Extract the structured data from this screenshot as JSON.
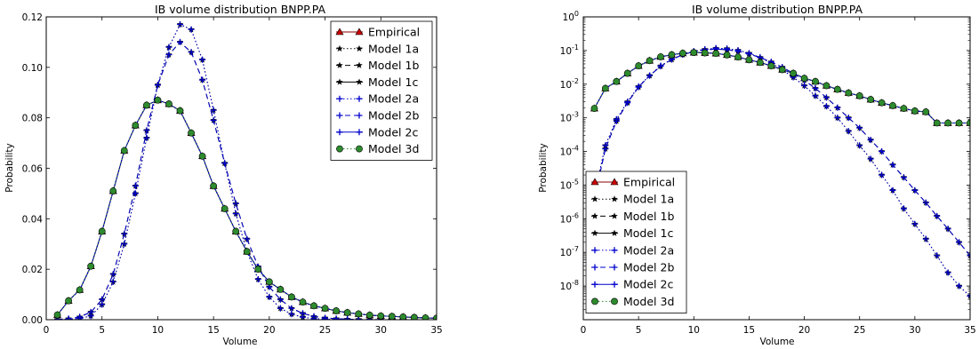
{
  "chart_data": [
    {
      "type": "line",
      "title": "IB volume distribution BNPP.PA",
      "xlabel": "Volume",
      "ylabel": "Probability",
      "xlim": [
        0,
        35
      ],
      "ylim": [
        0,
        0.12
      ],
      "x_ticks": [
        "0",
        "5",
        "10",
        "15",
        "20",
        "25",
        "30",
        "35"
      ],
      "y_ticks": [
        "0.00",
        "0.02",
        "0.04",
        "0.06",
        "0.08",
        "0.10",
        "0.12"
      ],
      "y_scale": "linear",
      "grid": false,
      "legend_position": "top-right",
      "x": [
        1,
        2,
        3,
        4,
        5,
        6,
        7,
        8,
        9,
        10,
        11,
        12,
        13,
        14,
        15,
        16,
        17,
        18,
        19,
        20,
        21,
        22,
        23,
        24,
        25,
        26,
        27,
        28,
        29,
        30,
        31,
        32,
        33,
        34,
        35
      ],
      "series": [
        {
          "name": "Empirical",
          "color": "#8b0000",
          "marker": "triangle",
          "dash": "solid",
          "values": [
            0.0019,
            0.0075,
            0.0118,
            0.0212,
            0.035,
            0.051,
            0.067,
            0.077,
            0.085,
            0.087,
            0.0855,
            0.0828,
            0.074,
            0.0648,
            0.053,
            0.044,
            0.035,
            0.027,
            0.02,
            0.015,
            0.012,
            0.009,
            0.007,
            0.0055,
            0.0045,
            0.0035,
            0.0028,
            0.0023,
            0.0018,
            0.0015,
            0.0013,
            0.0011,
            0.0009,
            0.0007,
            0.0006
          ]
        },
        {
          "name": "Model 1a",
          "color": "#000000",
          "marker": "star",
          "dash": "dotted",
          "values": [
            0.0,
            0.0002,
            0.0005,
            0.0015,
            0.006,
            0.015,
            0.03,
            0.05,
            0.072,
            0.093,
            0.108,
            0.117,
            0.115,
            0.103,
            0.083,
            0.062,
            0.042,
            0.027,
            0.016,
            0.009,
            0.0045,
            0.0022,
            0.001,
            0.0004,
            0.0002,
            0.0001,
            3e-05,
            1e-05,
            0,
            0,
            0,
            0,
            0,
            0,
            0
          ]
        },
        {
          "name": "Model 1b",
          "color": "#000000",
          "marker": "star",
          "dash": "dashed",
          "values": [
            0.0001,
            0.0004,
            0.0011,
            0.003,
            0.008,
            0.018,
            0.034,
            0.053,
            0.075,
            0.093,
            0.105,
            0.11,
            0.106,
            0.095,
            0.079,
            0.062,
            0.046,
            0.032,
            0.021,
            0.013,
            0.008,
            0.0045,
            0.0025,
            0.0013,
            0.0007,
            0.0004,
            0.0002,
            0.0001,
            5e-05,
            2e-05,
            1e-05,
            0,
            0,
            0,
            0
          ]
        },
        {
          "name": "Model 1c",
          "color": "#000000",
          "marker": "star",
          "dash": "solid",
          "values": [
            0.0019,
            0.0075,
            0.0118,
            0.0212,
            0.035,
            0.051,
            0.067,
            0.077,
            0.085,
            0.087,
            0.0855,
            0.0828,
            0.074,
            0.0648,
            0.053,
            0.044,
            0.035,
            0.027,
            0.02,
            0.015,
            0.012,
            0.009,
            0.007,
            0.0055,
            0.0045,
            0.0035,
            0.0028,
            0.0023,
            0.0018,
            0.0015,
            0.0013,
            0.0011,
            0.0009,
            0.0007,
            0.0006
          ]
        },
        {
          "name": "Model 2a",
          "color": "#0000cc",
          "marker": "plus",
          "dash": "dotted",
          "values": [
            0.0,
            0.0002,
            0.0005,
            0.0015,
            0.006,
            0.015,
            0.03,
            0.05,
            0.072,
            0.093,
            0.108,
            0.117,
            0.115,
            0.103,
            0.083,
            0.062,
            0.042,
            0.027,
            0.016,
            0.009,
            0.0045,
            0.0022,
            0.001,
            0.0004,
            0.0002,
            0.0001,
            3e-05,
            1e-05,
            0,
            0,
            0,
            0,
            0,
            0,
            0
          ]
        },
        {
          "name": "Model 2b",
          "color": "#0000cc",
          "marker": "plus",
          "dash": "dashed",
          "values": [
            0.0001,
            0.0004,
            0.0011,
            0.003,
            0.008,
            0.018,
            0.034,
            0.053,
            0.075,
            0.093,
            0.105,
            0.11,
            0.106,
            0.095,
            0.079,
            0.062,
            0.046,
            0.032,
            0.021,
            0.013,
            0.008,
            0.0045,
            0.0025,
            0.0013,
            0.0007,
            0.0004,
            0.0002,
            0.0001,
            5e-05,
            2e-05,
            1e-05,
            0,
            0,
            0,
            0
          ]
        },
        {
          "name": "Model 2c",
          "color": "#0000cc",
          "marker": "plus",
          "dash": "solid",
          "values": [
            0.0019,
            0.0075,
            0.0118,
            0.0212,
            0.035,
            0.051,
            0.067,
            0.077,
            0.085,
            0.087,
            0.0855,
            0.0828,
            0.074,
            0.0648,
            0.053,
            0.044,
            0.035,
            0.027,
            0.02,
            0.015,
            0.012,
            0.009,
            0.007,
            0.0055,
            0.0045,
            0.0035,
            0.0028,
            0.0023,
            0.0018,
            0.0015,
            0.0013,
            0.0011,
            0.0009,
            0.0007,
            0.0006
          ]
        },
        {
          "name": "Model 3d",
          "color": "#2e8b2e",
          "marker": "circle",
          "dash": "dotted",
          "values": [
            0.0019,
            0.0075,
            0.0118,
            0.0212,
            0.035,
            0.051,
            0.067,
            0.077,
            0.085,
            0.087,
            0.0855,
            0.0828,
            0.074,
            0.0648,
            0.053,
            0.044,
            0.035,
            0.027,
            0.02,
            0.015,
            0.012,
            0.009,
            0.007,
            0.0055,
            0.0045,
            0.0035,
            0.0028,
            0.0023,
            0.0018,
            0.0015,
            0.0013,
            0.0011,
            0.0009,
            0.0007,
            0.0006
          ]
        }
      ]
    },
    {
      "type": "line",
      "title": "IB volume distribution BNPP.PA",
      "xlabel": "Volume",
      "ylabel": "Probability",
      "xlim": [
        0,
        35
      ],
      "ylim": [
        1e-09,
        1
      ],
      "x_ticks": [
        "0",
        "5",
        "10",
        "15",
        "20",
        "25",
        "30",
        "35"
      ],
      "y_ticks": [
        {
          "base": "10",
          "exp": "0"
        },
        {
          "base": "10",
          "exp": "-1"
        },
        {
          "base": "10",
          "exp": "-2"
        },
        {
          "base": "10",
          "exp": "-3"
        },
        {
          "base": "10",
          "exp": "-4"
        },
        {
          "base": "10",
          "exp": "-5"
        },
        {
          "base": "10",
          "exp": "-6"
        },
        {
          "base": "10",
          "exp": "-7"
        },
        {
          "base": "10",
          "exp": "-8"
        }
      ],
      "y_scale": "log",
      "grid": false,
      "legend_position": "bottom-left",
      "x": [
        1,
        2,
        3,
        4,
        5,
        6,
        7,
        8,
        9,
        10,
        11,
        12,
        13,
        14,
        15,
        16,
        17,
        18,
        19,
        20,
        21,
        22,
        23,
        24,
        25,
        26,
        27,
        28,
        29,
        30,
        31,
        32,
        33,
        34,
        35
      ],
      "series": [
        {
          "name": "Empirical",
          "color": "#8b0000",
          "marker": "triangle",
          "dash": "solid",
          "values": [
            0.0019,
            0.0075,
            0.012,
            0.021,
            0.035,
            0.05,
            0.065,
            0.075,
            0.083,
            0.087,
            0.085,
            0.082,
            0.074,
            0.064,
            0.053,
            0.044,
            0.035,
            0.027,
            0.021,
            0.015,
            0.012,
            0.009,
            0.007,
            0.0055,
            0.0045,
            0.0035,
            0.0028,
            0.0023,
            0.0019,
            0.0016,
            0.0015,
            0.0007,
            0.0007,
            0.0007,
            0.0007
          ]
        },
        {
          "name": "Model 1a",
          "color": "#000000",
          "marker": "star",
          "dash": "dotted",
          "values": [
            5e-06,
            0.00015,
            0.0009,
            0.003,
            0.0085,
            0.018,
            0.035,
            0.055,
            0.077,
            0.095,
            0.108,
            0.117,
            0.114,
            0.102,
            0.083,
            0.062,
            0.042,
            0.027,
            0.016,
            0.009,
            0.0045,
            0.0022,
            0.001,
            0.0004,
            0.00015,
            6e-05,
            2e-05,
            7e-06,
            2e-06,
            7e-07,
            2.5e-07,
            8e-08,
            2.5e-08,
            1e-08,
            5e-09
          ]
        },
        {
          "name": "Model 1b",
          "color": "#000000",
          "marker": "star",
          "dash": "dashed",
          "values": [
            4e-06,
            0.00012,
            0.0008,
            0.0028,
            0.0082,
            0.018,
            0.034,
            0.054,
            0.075,
            0.093,
            0.105,
            0.11,
            0.106,
            0.095,
            0.079,
            0.062,
            0.046,
            0.032,
            0.021,
            0.013,
            0.0075,
            0.004,
            0.002,
            0.001,
            0.0005,
            0.00022,
            0.0001,
            4e-05,
            1.7e-05,
            7e-06,
            3e-06,
            1.2e-06,
            5e-07,
            2e-07,
            8e-08
          ]
        },
        {
          "name": "Model 1c",
          "color": "#000000",
          "marker": "star",
          "dash": "solid",
          "values": [
            0.0019,
            0.0075,
            0.012,
            0.021,
            0.035,
            0.05,
            0.065,
            0.075,
            0.083,
            0.087,
            0.085,
            0.082,
            0.074,
            0.064,
            0.053,
            0.044,
            0.035,
            0.027,
            0.021,
            0.015,
            0.012,
            0.009,
            0.007,
            0.0055,
            0.0045,
            0.0035,
            0.0028,
            0.0023,
            0.0019,
            0.0016,
            0.0015,
            0.0007,
            0.0007,
            0.0007,
            0.0007
          ]
        },
        {
          "name": "Model 2a",
          "color": "#0000cc",
          "marker": "plus",
          "dash": "dotted",
          "values": [
            5e-06,
            0.00015,
            0.0009,
            0.003,
            0.0085,
            0.018,
            0.035,
            0.055,
            0.077,
            0.095,
            0.108,
            0.117,
            0.114,
            0.102,
            0.083,
            0.062,
            0.042,
            0.027,
            0.016,
            0.009,
            0.0045,
            0.0022,
            0.001,
            0.0004,
            0.00015,
            6e-05,
            2e-05,
            7e-06,
            2e-06,
            7e-07,
            2.5e-07,
            8e-08,
            2.5e-08,
            1e-08,
            5e-09
          ]
        },
        {
          "name": "Model 2b",
          "color": "#0000cc",
          "marker": "plus",
          "dash": "dashed",
          "values": [
            4e-06,
            0.00012,
            0.0008,
            0.0028,
            0.0082,
            0.018,
            0.034,
            0.054,
            0.075,
            0.093,
            0.105,
            0.11,
            0.106,
            0.095,
            0.079,
            0.062,
            0.046,
            0.032,
            0.021,
            0.013,
            0.0075,
            0.004,
            0.002,
            0.001,
            0.0005,
            0.00022,
            0.0001,
            4e-05,
            1.7e-05,
            7e-06,
            3e-06,
            1.2e-06,
            5e-07,
            2e-07,
            8e-08
          ]
        },
        {
          "name": "Model 2c",
          "color": "#0000cc",
          "marker": "plus",
          "dash": "solid",
          "values": [
            0.0019,
            0.0075,
            0.012,
            0.021,
            0.035,
            0.05,
            0.065,
            0.075,
            0.083,
            0.087,
            0.085,
            0.082,
            0.074,
            0.064,
            0.053,
            0.044,
            0.035,
            0.027,
            0.021,
            0.015,
            0.012,
            0.009,
            0.007,
            0.0055,
            0.0045,
            0.0035,
            0.0028,
            0.0023,
            0.0019,
            0.0016,
            0.0015,
            0.0007,
            0.0007,
            0.0007,
            0.0007
          ]
        },
        {
          "name": "Model 3d",
          "color": "#2e8b2e",
          "marker": "circle",
          "dash": "dotted",
          "values": [
            0.0019,
            0.0075,
            0.012,
            0.021,
            0.035,
            0.05,
            0.065,
            0.075,
            0.083,
            0.087,
            0.085,
            0.082,
            0.074,
            0.064,
            0.053,
            0.044,
            0.035,
            0.027,
            0.021,
            0.015,
            0.012,
            0.009,
            0.007,
            0.0055,
            0.0045,
            0.0035,
            0.0028,
            0.0023,
            0.0019,
            0.0016,
            0.0015,
            0.0007,
            0.0007,
            0.0007,
            0.0007
          ]
        }
      ]
    }
  ]
}
